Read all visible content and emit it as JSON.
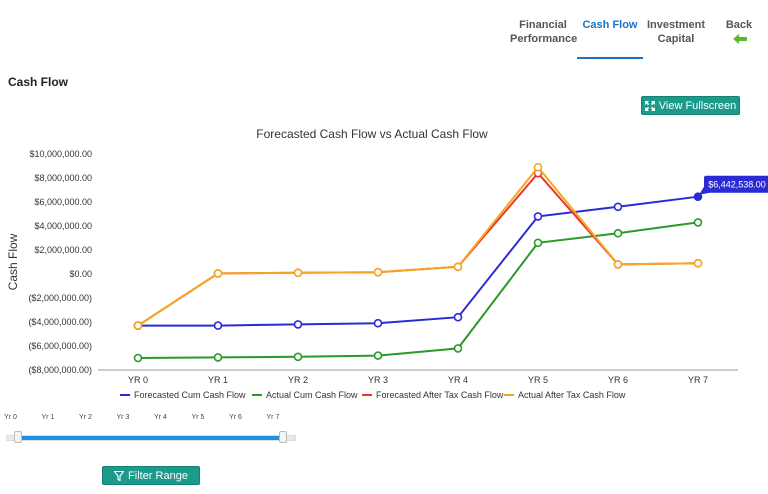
{
  "nav": {
    "tabs": [
      {
        "line1": "Financial",
        "line2": "Performance"
      },
      {
        "line1": "Cash Flow",
        "line2": ""
      },
      {
        "line1": "Investment",
        "line2": "Capital"
      },
      {
        "line1": "Back",
        "line2": ""
      }
    ],
    "active_tab": "Cash Flow",
    "colors": {
      "active": "#1a73c9",
      "back_arrow": "#5cb82e"
    }
  },
  "page_title": "Cash Flow",
  "fullscreen_button": {
    "label": "View Fullscreen",
    "icon": "expand-icon"
  },
  "chart_data": {
    "type": "line",
    "title": "Forecasted Cash Flow vs Actual Cash Flow",
    "ylabel": "Cash Flow",
    "xlabel": "",
    "categories": [
      "YR 0",
      "YR 1",
      "YR 2",
      "YR 3",
      "YR 4",
      "YR 5",
      "YR 6",
      "YR 7"
    ],
    "ylim": [
      -8000000,
      10000000
    ],
    "yticks": [
      10000000,
      8000000,
      6000000,
      4000000,
      2000000,
      0,
      -2000000,
      -4000000,
      -6000000,
      -8000000
    ],
    "ytick_labels": [
      "$10,000,000.00",
      "$8,000,000.00",
      "$6,000,000.00",
      "$4,000,000.00",
      "$2,000,000.00",
      "$0.00",
      "($2,000,000.00)",
      "($4,000,000.00)",
      "($6,000,000.00)",
      "($8,000,000.00)"
    ],
    "grid": false,
    "legend_position": "bottom",
    "series": [
      {
        "name": "Forecasted Cum Cash Flow",
        "color": "#2b2bd6",
        "values": [
          -4300000,
          -4300000,
          -4200000,
          -4100000,
          -3600000,
          4800000,
          5600000,
          6442538
        ]
      },
      {
        "name": "Actual Cum Cash Flow",
        "color": "#2a9a2a",
        "values": [
          -7000000,
          -6950000,
          -6900000,
          -6800000,
          -6200000,
          2600000,
          3400000,
          4300000
        ]
      },
      {
        "name": "Forecasted After Tax Cash Flow",
        "color": "#e8392a",
        "values": [
          -4300000,
          50000,
          100000,
          150000,
          600000,
          8400000,
          800000,
          900000
        ]
      },
      {
        "name": "Actual After Tax Cash Flow",
        "color": "#f5a623",
        "values": [
          -4300000,
          50000,
          100000,
          150000,
          600000,
          8900000,
          800000,
          900000
        ]
      }
    ],
    "tooltip": {
      "series_index": 0,
      "point_index": 7,
      "label": "$6,442,538.00"
    }
  },
  "range_slider": {
    "labels": [
      "Yr 0",
      "Yr 1",
      "Yr 2",
      "Yr 3",
      "Yr 4",
      "Yr 5",
      "Yr 6",
      "Yr 7"
    ],
    "selected_start": "Yr 0",
    "selected_end": "Yr 7",
    "fill_color": "#1e90e0"
  },
  "filter_button": {
    "label": "Filter Range",
    "icon": "funnel-icon"
  }
}
